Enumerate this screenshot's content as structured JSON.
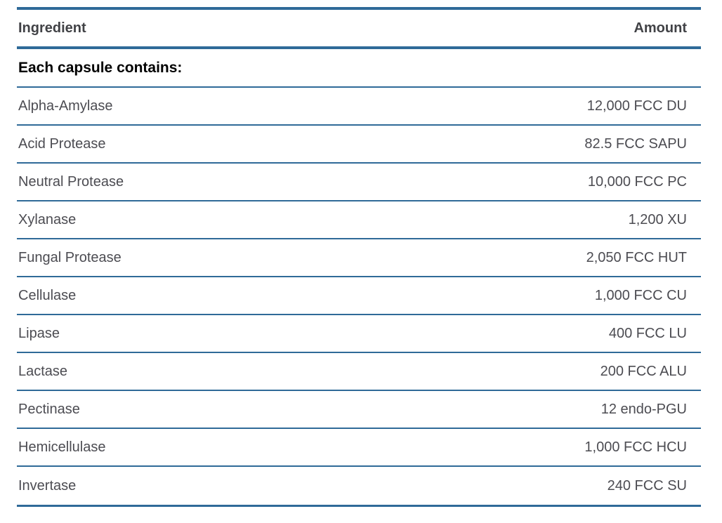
{
  "chart_data": {
    "type": "table",
    "columns": [
      "Ingredient",
      "Amount"
    ],
    "section_label": "Each capsule contains:",
    "rows": [
      {
        "ingredient": "Alpha-Amylase",
        "amount": "12,000 FCC DU"
      },
      {
        "ingredient": "Acid Protease",
        "amount": "82.5 FCC SAPU"
      },
      {
        "ingredient": "Neutral Protease",
        "amount": "10,000 FCC PC"
      },
      {
        "ingredient": "Xylanase",
        "amount": "1,200 XU"
      },
      {
        "ingredient": "Fungal Protease",
        "amount": "2,050 FCC HUT"
      },
      {
        "ingredient": "Cellulase",
        "amount": "1,000 FCC CU"
      },
      {
        "ingredient": "Lipase",
        "amount": "400 FCC LU"
      },
      {
        "ingredient": "Lactase",
        "amount": "200 FCC ALU"
      },
      {
        "ingredient": "Pectinase",
        "amount": "12 endo-PGU"
      },
      {
        "ingredient": "Hemicellulase",
        "amount": "1,000 FCC HCU"
      },
      {
        "ingredient": "Invertase",
        "amount": "240 FCC SU"
      }
    ]
  },
  "table": {
    "headers": {
      "ingredient": "Ingredient",
      "amount": "Amount"
    },
    "section_label": "Each capsule contains:",
    "rows": [
      {
        "ingredient": "Alpha-Amylase",
        "amount": "12,000 FCC DU"
      },
      {
        "ingredient": "Acid Protease",
        "amount": "82.5 FCC SAPU"
      },
      {
        "ingredient": "Neutral Protease",
        "amount": "10,000 FCC PC"
      },
      {
        "ingredient": "Xylanase",
        "amount": "1,200 XU"
      },
      {
        "ingredient": "Fungal Protease",
        "amount": "2,050 FCC HUT"
      },
      {
        "ingredient": "Cellulase",
        "amount": "1,000 FCC CU"
      },
      {
        "ingredient": "Lipase",
        "amount": "400 FCC LU"
      },
      {
        "ingredient": "Lactase",
        "amount": "200 FCC ALU"
      },
      {
        "ingredient": "Pectinase",
        "amount": "12 endo-PGU"
      },
      {
        "ingredient": "Hemicellulase",
        "amount": "1,000 FCC HCU"
      },
      {
        "ingredient": "Invertase",
        "amount": "240 FCC SU"
      }
    ],
    "colors": {
      "rule_blue": "#2f6a98",
      "header_text": "#414246",
      "row_text": "#4c4c52",
      "section_text": "#000000",
      "background": "#ffffff"
    }
  }
}
